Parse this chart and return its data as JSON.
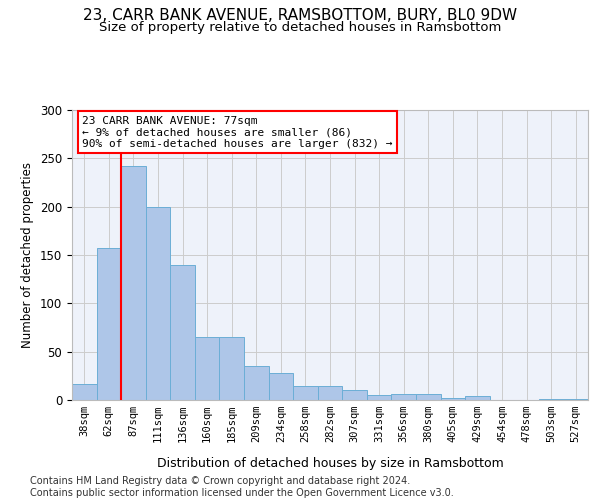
{
  "title_line1": "23, CARR BANK AVENUE, RAMSBOTTOM, BURY, BL0 9DW",
  "title_line2": "Size of property relative to detached houses in Ramsbottom",
  "xlabel": "Distribution of detached houses by size in Ramsbottom",
  "ylabel": "Number of detached properties",
  "footnote": "Contains HM Land Registry data © Crown copyright and database right 2024.\nContains public sector information licensed under the Open Government Licence v3.0.",
  "bar_labels": [
    "38sqm",
    "62sqm",
    "87sqm",
    "111sqm",
    "136sqm",
    "160sqm",
    "185sqm",
    "209sqm",
    "234sqm",
    "258sqm",
    "282sqm",
    "307sqm",
    "331sqm",
    "356sqm",
    "380sqm",
    "405sqm",
    "429sqm",
    "454sqm",
    "478sqm",
    "503sqm",
    "527sqm"
  ],
  "bar_values": [
    17,
    157,
    242,
    200,
    140,
    65,
    65,
    35,
    28,
    15,
    15,
    10,
    5,
    6,
    6,
    2,
    4,
    0,
    0,
    1,
    1
  ],
  "bar_color": "#aec6e8",
  "bar_edgecolor": "#6baed6",
  "vline_x": 1.5,
  "vline_color": "red",
  "annotation_text": "23 CARR BANK AVENUE: 77sqm\n← 9% of detached houses are smaller (86)\n90% of semi-detached houses are larger (832) →",
  "ylim": [
    0,
    300
  ],
  "yticks": [
    0,
    50,
    100,
    150,
    200,
    250,
    300
  ],
  "bg_color": "#eef2fa",
  "grid_color": "#cccccc",
  "title1_fontsize": 11,
  "title2_fontsize": 9.5,
  "xlabel_fontsize": 9,
  "ylabel_fontsize": 8.5,
  "footnote_fontsize": 7,
  "tick_fontsize": 7.5,
  "annot_fontsize": 8
}
